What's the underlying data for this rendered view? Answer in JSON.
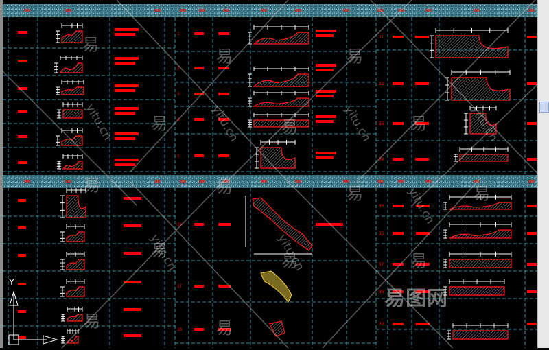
{
  "canvas": {
    "background": "#000000",
    "header_band_color": "#3f7f8f",
    "grid_color": "#2f8fa0",
    "profile_outline_color": "#ff1a1a",
    "annotation_color": "#ff0000",
    "dimension_color": "#ffffff"
  },
  "ucs_icon": {
    "y_label": "Y"
  },
  "row_numbers": {
    "top_middle": [
      "1",
      "2",
      "3",
      "4",
      "5"
    ],
    "top_right": [
      "31",
      "32",
      "33",
      "34"
    ],
    "bottom_middle": [
      "16",
      "17",
      "18"
    ],
    "bottom_right": [
      "35",
      "36",
      "37",
      "38",
      "39"
    ]
  },
  "watermark": {
    "brand": "易图网",
    "glyph": "易",
    "url": "yitu.cn"
  },
  "scrollbar": {
    "position": 0.3
  }
}
